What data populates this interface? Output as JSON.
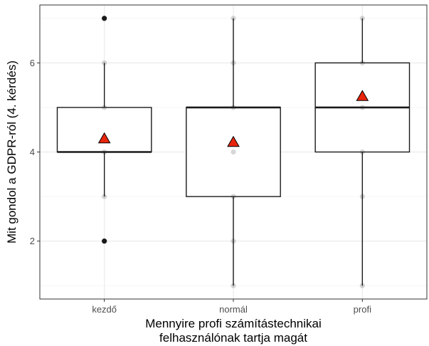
{
  "chart_data": {
    "type": "boxplot",
    "title": "",
    "xlabel_lines": [
      "Mennyire profi számítástechnikai",
      "felhasználónak tartja magát"
    ],
    "ylabel": "Mit gondol a GDPR-ról (4. kérdés)",
    "ylim": [
      0.7,
      7.3
    ],
    "y_ticks": [
      2,
      4,
      6
    ],
    "y_minor_ticks": [
      1,
      3,
      5,
      7
    ],
    "categories": [
      "kezdő",
      "normál",
      "profi"
    ],
    "grid": true,
    "boxes": [
      {
        "category": "kezdő",
        "whisker_low": 3,
        "q1": 4,
        "median": 4,
        "q3": 5,
        "whisker_high": 6,
        "mean": 4.3,
        "outliers": [
          2,
          7
        ],
        "points": [
          3,
          4,
          5,
          6
        ]
      },
      {
        "category": "normál",
        "whisker_low": 1,
        "q1": 3,
        "median": 5,
        "q3": 5,
        "whisker_high": 7,
        "mean": 4.22,
        "outliers": [],
        "points": [
          1,
          2,
          3,
          4,
          5,
          6,
          7
        ]
      },
      {
        "category": "profi",
        "whisker_low": 1,
        "q1": 4,
        "median": 5,
        "q3": 6,
        "whisker_high": 7,
        "mean": 5.25,
        "outliers": [],
        "points": [
          1,
          3,
          4,
          5,
          6,
          7
        ]
      }
    ],
    "colors": {
      "panel_border": "#333333",
      "grid_major": "#ebebeb",
      "grid_minor": "#f5f5f5",
      "box_line": "#1a1a1a",
      "point": "#1a1a1a",
      "mean_fill": "#e8250c"
    }
  }
}
